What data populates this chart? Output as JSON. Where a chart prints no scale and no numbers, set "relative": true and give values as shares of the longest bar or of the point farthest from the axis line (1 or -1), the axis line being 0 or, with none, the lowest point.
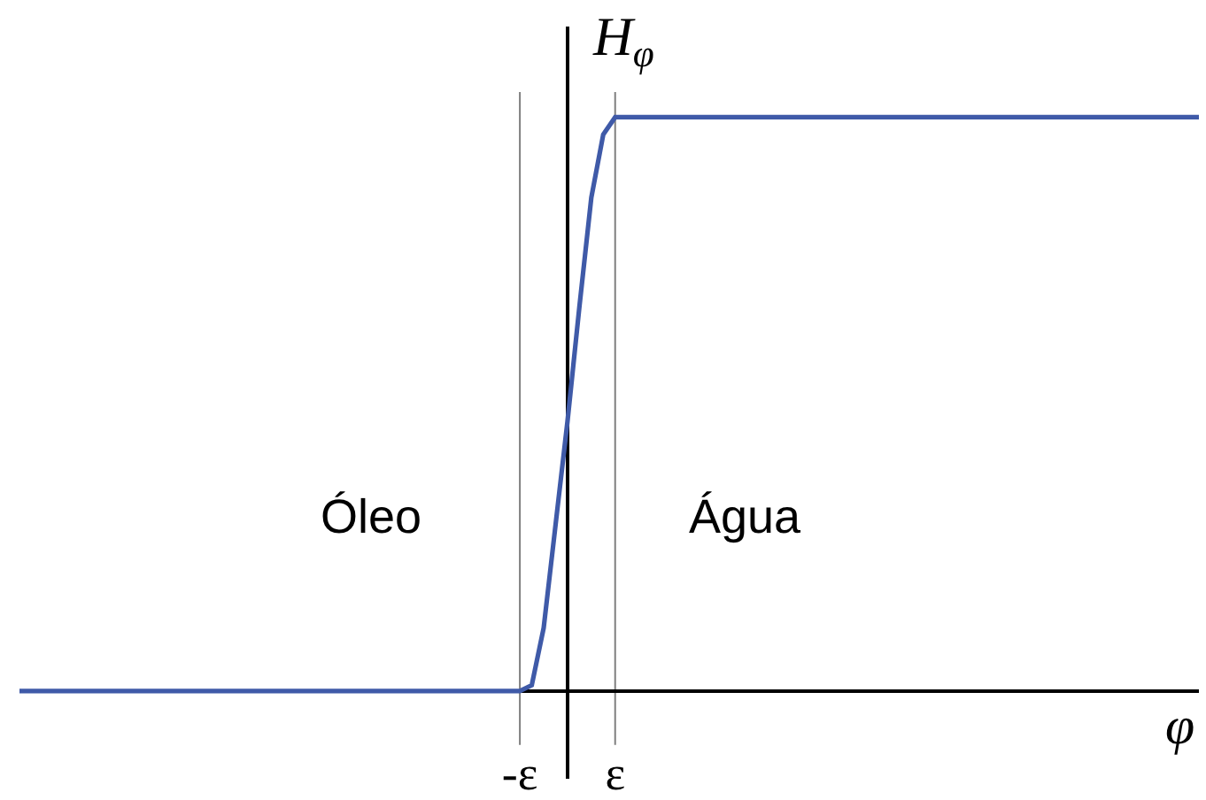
{
  "chart_data": {
    "type": "line",
    "relative": true,
    "xlabel": "φ",
    "ylabel": "H$_{φ}$",
    "annotations": [
      "Óleo",
      "Água"
    ],
    "categories": [
      null,
      null,
      null,
      null,
      null,
      null,
      null,
      null,
      null,
      null,
      null,
      null,
      null,
      null,
      null,
      null,
      null,
      null,
      null,
      null,
      null,
      null,
      null,
      null,
      null,
      null,
      null,
      null,
      null,
      null,
      null,
      null,
      null,
      null,
      null,
      null,
      null,
      null,
      null,
      null,
      null,
      null,
      "-ε",
      null,
      null,
      null,
      null,
      null,
      null,
      null,
      "ε",
      null,
      null,
      null,
      null,
      null,
      null,
      null,
      null,
      null,
      null,
      null,
      null,
      null,
      null,
      null,
      null,
      null,
      null,
      null,
      null,
      null,
      null,
      null,
      null,
      null,
      null,
      null,
      null,
      null,
      null,
      null,
      null,
      null,
      null,
      null,
      null,
      null,
      null,
      null,
      null,
      null,
      null,
      null,
      null,
      null,
      null,
      null,
      null,
      null
    ],
    "tick_labels": "x",
    "ref_lines": [
      {
        "axis": "x",
        "value": "-ε",
        "color": "#7f7f7f"
      },
      {
        "axis": "x",
        "value": "ε",
        "color": "#7f7f7f"
      }
    ],
    "series": [
      {
        "color": "#3f5aa8",
        "values": [
          0,
          0,
          0,
          0,
          0,
          0,
          0,
          0,
          0,
          0,
          0,
          0,
          0,
          0,
          0,
          0,
          0,
          0,
          0,
          0,
          0,
          0,
          0,
          0,
          0,
          0,
          0,
          0,
          0,
          0,
          0,
          0,
          0,
          0,
          0,
          0,
          0,
          0,
          0,
          0,
          0,
          0,
          0,
          0.01,
          0.11,
          0.29,
          0.47,
          0.67,
          0.86,
          0.97,
          1,
          1,
          1,
          1,
          1,
          1,
          1,
          1,
          1,
          1,
          1,
          1,
          1,
          1,
          1,
          1,
          1,
          1,
          1,
          1,
          1,
          1,
          1,
          1,
          1,
          1,
          1,
          1,
          1,
          1,
          1,
          1,
          1,
          1,
          1,
          1,
          1,
          1,
          1,
          1,
          1,
          1,
          1,
          1,
          1,
          1,
          1,
          1,
          1,
          1
        ]
      }
    ]
  }
}
